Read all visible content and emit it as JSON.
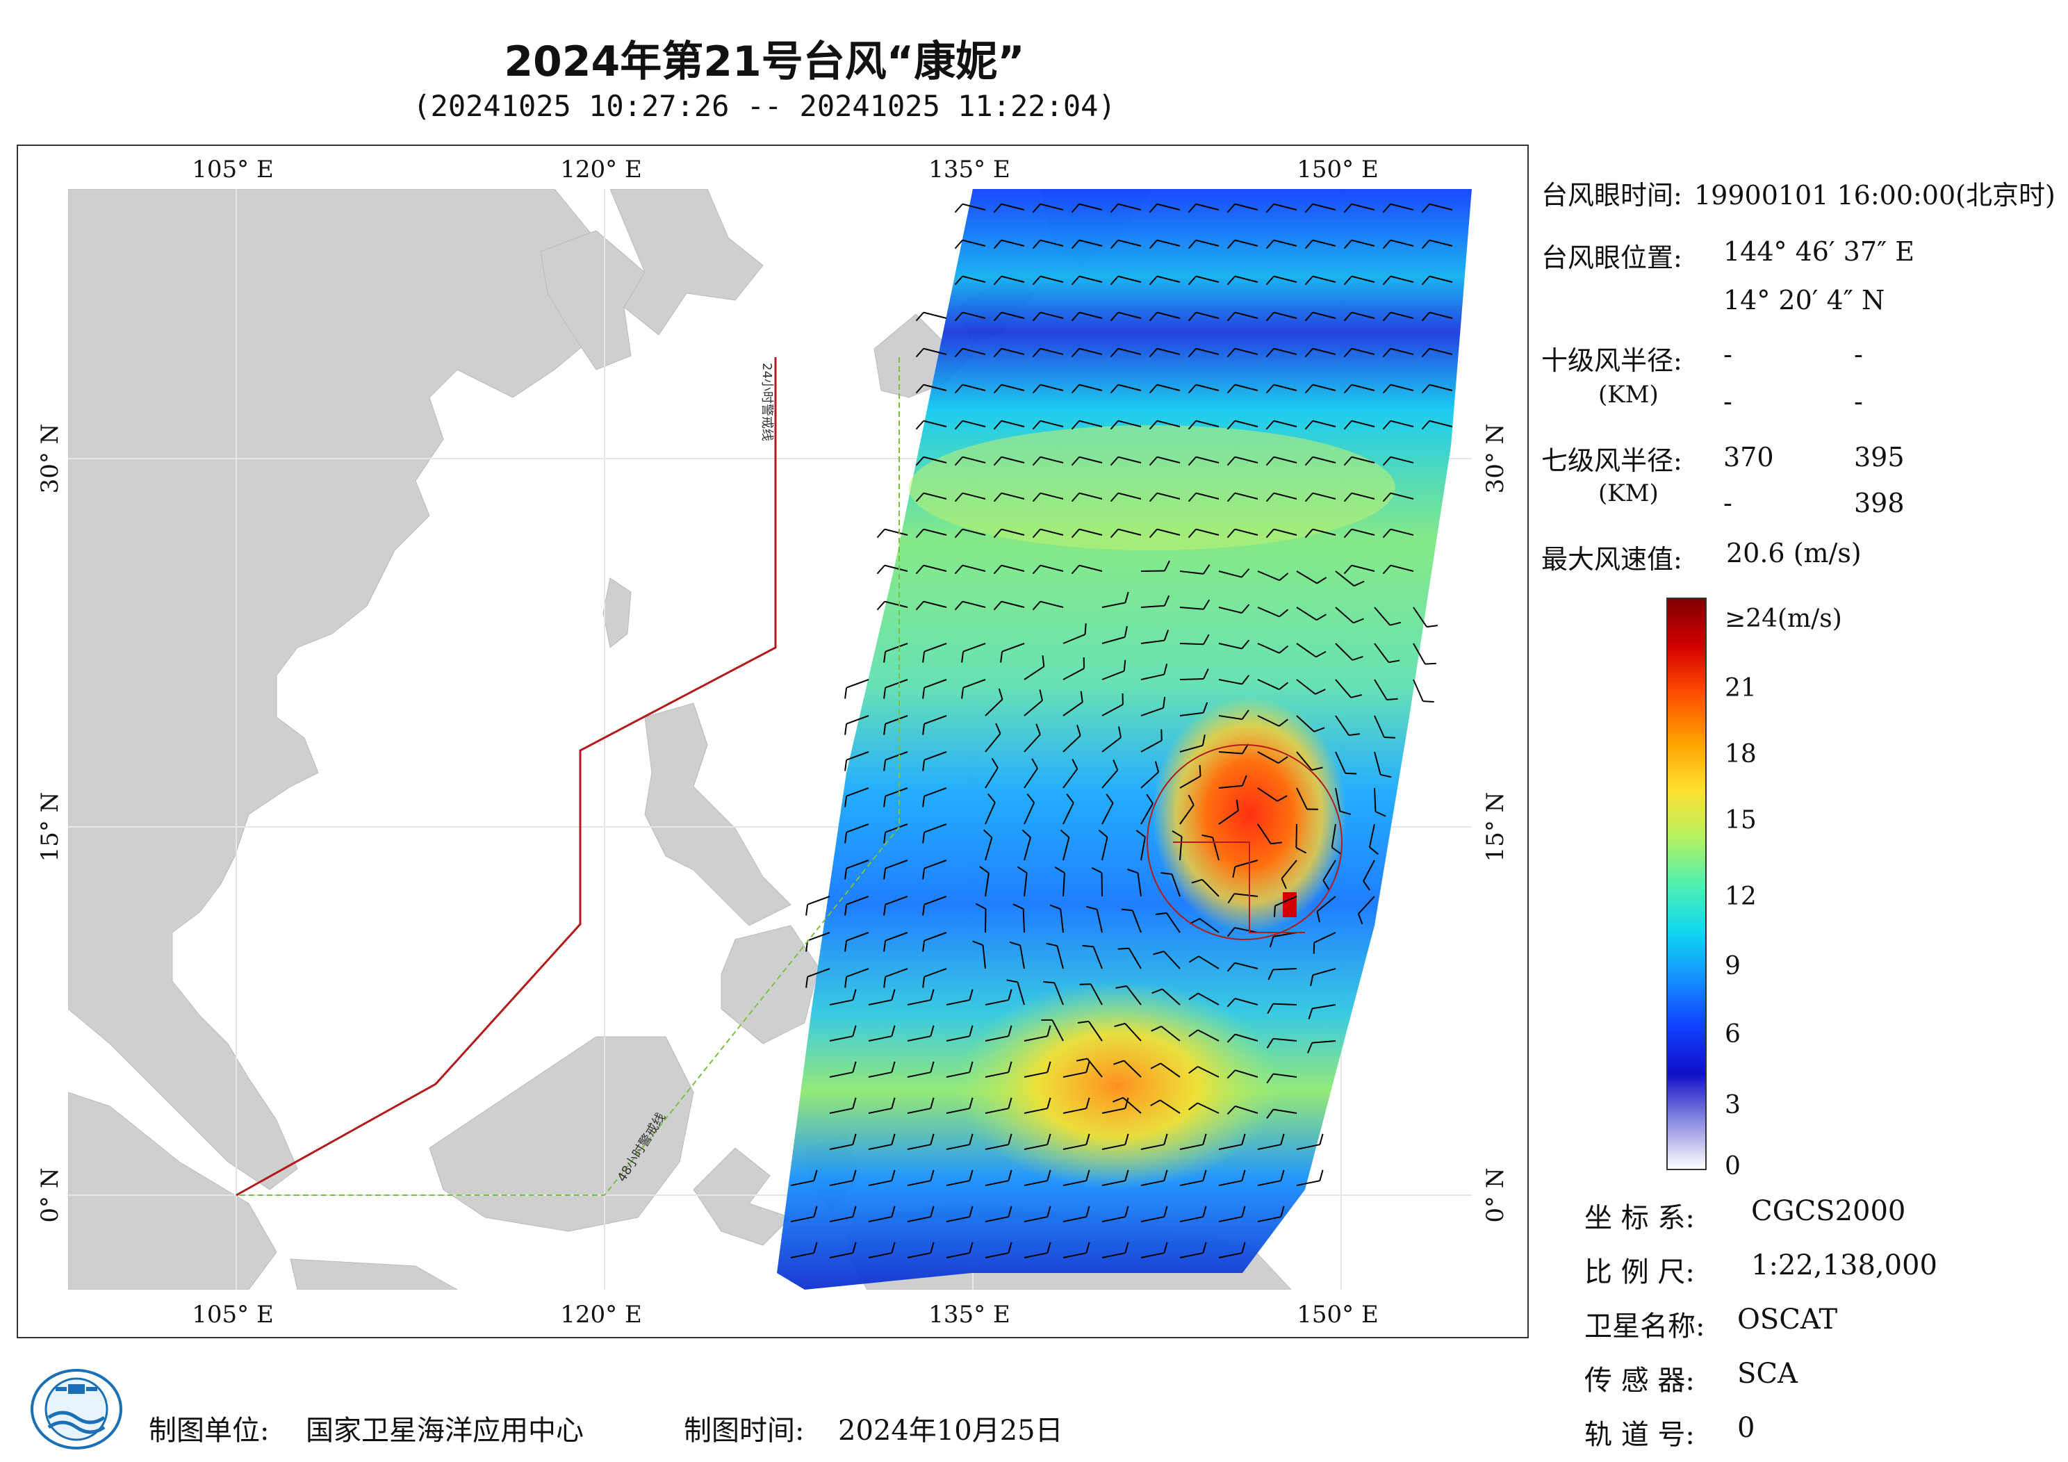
{
  "header": {
    "title": "2024年第21号台风“康妮”",
    "subtitle": "(20241025 10:27:26 -- 20241025 11:22:04)"
  },
  "map": {
    "lon_ticks": [
      "105° E",
      "120° E",
      "135° E",
      "150° E"
    ],
    "lat_ticks": [
      "30° N",
      "15° N",
      "0° N"
    ],
    "warning_24h_label": "24小时警戒线",
    "warning_48h_label": "48小时警戒线",
    "colors": {
      "land": "#cfcfcf",
      "sea": "#ffffff",
      "warning_24h": "#b31b1b",
      "warning_48h": "#7ac143",
      "barb": "#000000"
    }
  },
  "info": {
    "eye_time_label": "台风眼时间:",
    "eye_time_value": "19900101 16:00:00(北京时)",
    "eye_pos_label": "台风眼位置:",
    "eye_lon": "144° 46′ 37″ E",
    "eye_lat": "14° 20′ 4″ N",
    "r10_label": "十级风半径:",
    "r10_unit": "(KM)",
    "r10_values": [
      "-",
      "-",
      "-",
      "-"
    ],
    "r7_label": "七级风半径:",
    "r7_unit": "(KM)",
    "r7_values": [
      "370",
      "395",
      "-",
      "398"
    ],
    "max_wind_label": "最大风速值:",
    "max_wind_value": "20.6 (m/s)"
  },
  "colorbar": {
    "labels": [
      "≥24(m/s)",
      "21",
      "18",
      "15",
      "12",
      "9",
      "6",
      "3",
      "0"
    ],
    "label_values": [
      24,
      21,
      18,
      15,
      12,
      9,
      6,
      3,
      0
    ],
    "stops": [
      "#7f0000",
      "#d40000",
      "#ff5000",
      "#ffa000",
      "#ffe030",
      "#b8f060",
      "#50f0b0",
      "#10d8f0",
      "#1490ff",
      "#1040ff",
      "#1010c8",
      "#8c8ce0",
      "#ffffff"
    ]
  },
  "meta": {
    "crs_label": "坐 标 系:",
    "crs_value": "CGCS2000",
    "scale_label": "比 例 尺:",
    "scale_value": "1:22,138,000",
    "sat_label": "卫星名称:",
    "sat_value": "OSCAT",
    "sensor_label": "传 感 器:",
    "sensor_value": "SCA",
    "orbit_label": "轨 道 号:",
    "orbit_value": "0"
  },
  "footer": {
    "producer_label": "制图单位:",
    "producer_value": "国家卫星海洋应用中心",
    "date_label": "制图时间:",
    "date_value": "2024年10月25日"
  }
}
